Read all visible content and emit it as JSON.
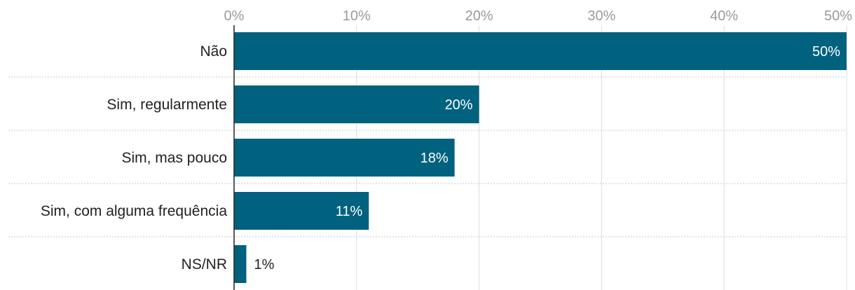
{
  "chart_data": {
    "type": "bar",
    "orientation": "horizontal",
    "categories": [
      "Não",
      "Sim, regularmente",
      "Sim, mas pouco",
      "Sim, com alguma frequência",
      "NS/NR"
    ],
    "values": [
      50,
      20,
      18,
      11,
      1
    ],
    "value_labels": [
      "50%",
      "20%",
      "18%",
      "11%",
      "1%"
    ],
    "xlim": [
      0,
      50
    ],
    "x_ticks": [
      0,
      10,
      20,
      30,
      40,
      50
    ],
    "x_tick_labels": [
      "0%",
      "10%",
      "20%",
      "30%",
      "40%",
      "50%"
    ],
    "axis_position": "top",
    "grid": true,
    "colors": {
      "bar": "#00627e",
      "grid": "#dddddd",
      "separator": "#c8c8c8",
      "axis": "#222222",
      "label_inside": "#ffffff",
      "label_outside": "#222222"
    }
  }
}
